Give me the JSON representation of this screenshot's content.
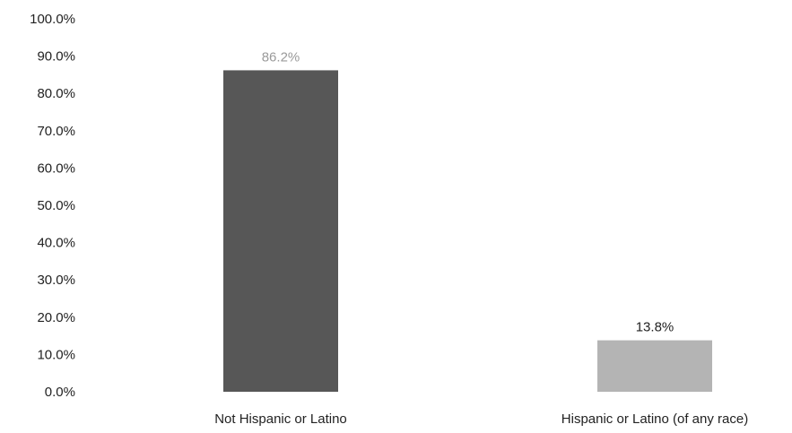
{
  "chart_data": {
    "type": "bar",
    "categories": [
      "Not Hispanic or Latino",
      "Hispanic or Latino (of any race)"
    ],
    "values": [
      86.2,
      13.8
    ],
    "data_labels": [
      "86.2%",
      "13.8%"
    ],
    "yticks": [
      "0.0%",
      "10.0%",
      "20.0%",
      "30.0%",
      "40.0%",
      "50.0%",
      "60.0%",
      "70.0%",
      "80.0%",
      "90.0%",
      "100.0%"
    ],
    "ylim": [
      0,
      100
    ],
    "grid": false,
    "legend": "none",
    "colors": {
      "bars": [
        "#575757",
        "#b4b4b4"
      ],
      "data_labels": [
        "#9a9a9a",
        "#222222"
      ]
    }
  }
}
